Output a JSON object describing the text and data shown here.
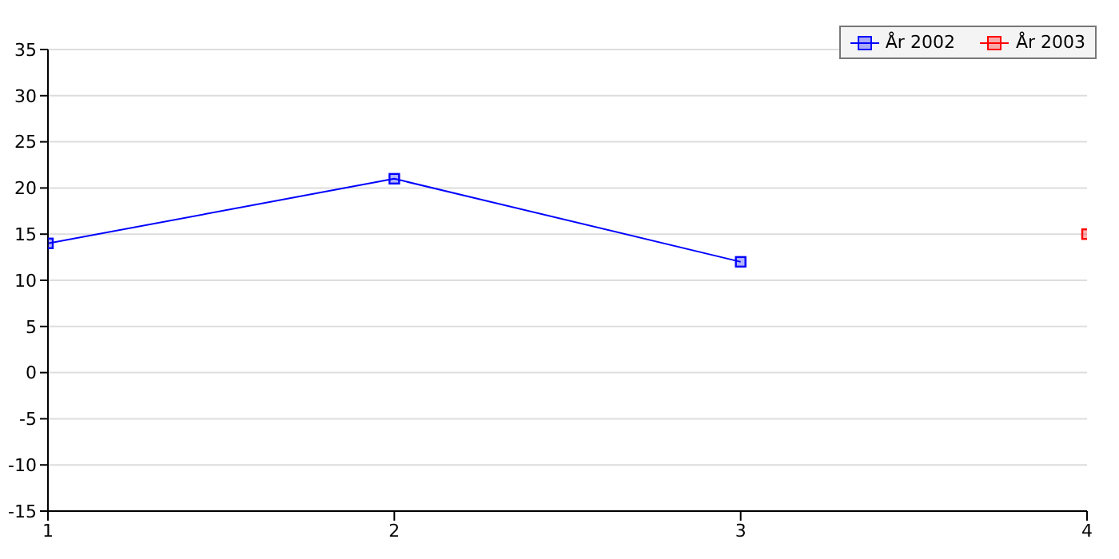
{
  "chart_data": {
    "type": "line",
    "xlim": [
      1,
      4
    ],
    "xticks": [
      1,
      2,
      3,
      4
    ],
    "ylim": [
      -15,
      35
    ],
    "yticks": [
      -15,
      -10,
      -5,
      0,
      5,
      10,
      15,
      20,
      25,
      30,
      35
    ],
    "grid": "y",
    "legend": "top right",
    "marker": "square",
    "series": [
      {
        "name": "År 2002",
        "color": "#0000ff",
        "x": [
          1,
          2,
          3
        ],
        "values": [
          14,
          21,
          12
        ]
      },
      {
        "name": "År 2003",
        "color": "#ff0000",
        "x": [
          4
        ],
        "values": [
          15
        ]
      }
    ]
  }
}
